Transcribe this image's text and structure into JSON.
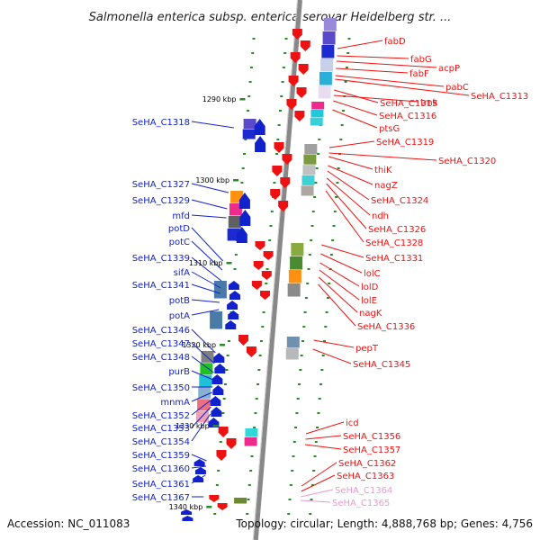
{
  "title": "Salmonella enterica subsp. enterica serovar Heidelberg str. ...",
  "accession": "Accession: NC_011083",
  "topology": "Topology: circular; Length: 4,888,768 bp; Genes: 4,756",
  "colors": {
    "reverse_strand": "#ee1111",
    "forward_strand": "#1122cc",
    "pseudo_gene": "#ee99cc",
    "backbone": "#888888",
    "tick": "#2a8a2a"
  },
  "scale_ticks": [
    {
      "label": "1290 kbp"
    },
    {
      "label": "1300 kbp"
    },
    {
      "label": "1310 kbp"
    },
    {
      "label": "1320 kbp"
    },
    {
      "label": "1330 kbp"
    },
    {
      "label": "1340 kbp"
    }
  ],
  "left_labels": [
    "SeHA_C1318",
    "SeHA_C1327",
    "SeHA_C1329",
    "mfd",
    "potD",
    "potC",
    "SeHA_C1339",
    "sifA",
    "SeHA_C1341",
    "potB",
    "potA",
    "SeHA_C1346",
    "SeHA_C1347",
    "SeHA_C1348",
    "purB",
    "SeHA_C1350",
    "mnmA",
    "SeHA_C1352",
    "SeHA_C1353",
    "SeHA_C1354",
    "SeHA_C1359",
    "SeHA_C1360",
    "SeHA_C1361",
    "SeHA_C1367"
  ],
  "right_labels": [
    "fabD",
    "fabG",
    "acpP",
    "fabF",
    "pabC",
    "SeHA_C1313",
    "SeHA_C1315",
    "tmk",
    "SeHA_C1316",
    "ptsG",
    "SeHA_C1319",
    "SeHA_C1320",
    "thiK",
    "nagZ",
    "SeHA_C1324",
    "ndh",
    "SeHA_C1326",
    "SeHA_C1328",
    "SeHA_C1331",
    "lolC",
    "lolD",
    "lolE",
    "nagK",
    "SeHA_C1336",
    "pepT",
    "SeHA_C1345",
    "icd",
    "SeHA_C1356",
    "SeHA_C1357",
    "SeHA_C1362",
    "SeHA_C1363",
    "SeHA_C1364",
    "SeHA_C1365"
  ],
  "pseudo_labels": [
    "SeHA_C1364",
    "SeHA_C1365"
  ]
}
